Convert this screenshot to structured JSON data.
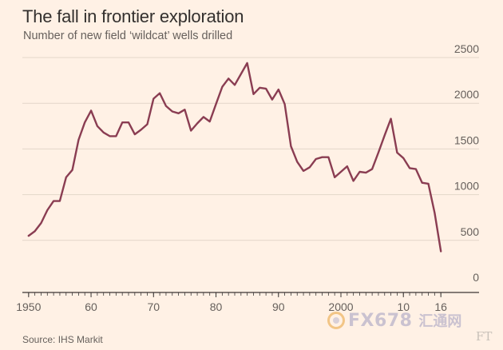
{
  "header": {
    "title": "The fall in frontier exploration",
    "subtitle": "Number of new field ‘wildcat’ wells drilled"
  },
  "footer": {
    "source": "Source: IHS Markit"
  },
  "watermark": {
    "brand": "FX678",
    "brand_cn": "汇通网",
    "corner_mark": "FT"
  },
  "chart_data": {
    "type": "line",
    "title": "The fall in frontier exploration",
    "subtitle": "Number of new field ‘wildcat’ wells drilled",
    "xlabel": "",
    "ylabel": "",
    "xlim": [
      1949,
      2017
    ],
    "ylim": [
      0,
      2500
    ],
    "yticks": [
      0,
      500,
      1000,
      1500,
      2000,
      2500
    ],
    "xticks": [
      {
        "value": 1950,
        "label": "1950"
      },
      {
        "value": 1960,
        "label": "60"
      },
      {
        "value": 1970,
        "label": "70"
      },
      {
        "value": 1980,
        "label": "80"
      },
      {
        "value": 1990,
        "label": "90"
      },
      {
        "value": 2000,
        "label": "2000"
      },
      {
        "value": 2010,
        "label": "10"
      },
      {
        "value": 2016,
        "label": "16"
      }
    ],
    "grid": "horizontal",
    "line_color": "#8a3d52",
    "series": [
      {
        "x": [
          1950,
          1951,
          1952,
          1953,
          1954,
          1955,
          1956,
          1957,
          1958,
          1959,
          1960,
          1961,
          1962,
          1963,
          1964,
          1965,
          1966,
          1967,
          1968,
          1969,
          1970,
          1971,
          1972,
          1973,
          1974,
          1975,
          1976,
          1977,
          1978,
          1979,
          1980,
          1981,
          1982,
          1983,
          1984,
          1985,
          1986,
          1987,
          1988,
          1989,
          1990,
          1991,
          1992,
          1993,
          1994,
          1995,
          1996,
          1997,
          1998,
          1999,
          2000,
          2001,
          2002,
          2003,
          2004,
          2005,
          2006,
          2007,
          2008,
          2009,
          2010,
          2011,
          2012,
          2013,
          2014,
          2015,
          2016
        ],
        "y": [
          550,
          600,
          690,
          830,
          930,
          930,
          1190,
          1270,
          1600,
          1790,
          1920,
          1750,
          1680,
          1640,
          1640,
          1790,
          1790,
          1660,
          1710,
          1770,
          2050,
          2110,
          1970,
          1910,
          1890,
          1930,
          1700,
          1780,
          1850,
          1800,
          1990,
          2180,
          2270,
          2200,
          2320,
          2440,
          2100,
          2170,
          2160,
          2040,
          2150,
          1990,
          1530,
          1360,
          1260,
          1300,
          1390,
          1410,
          1410,
          1190,
          1250,
          1310,
          1150,
          1250,
          1240,
          1280,
          1460,
          1650,
          1830,
          1460,
          1400,
          1290,
          1280,
          1130,
          1120,
          800,
          380
        ]
      }
    ]
  }
}
